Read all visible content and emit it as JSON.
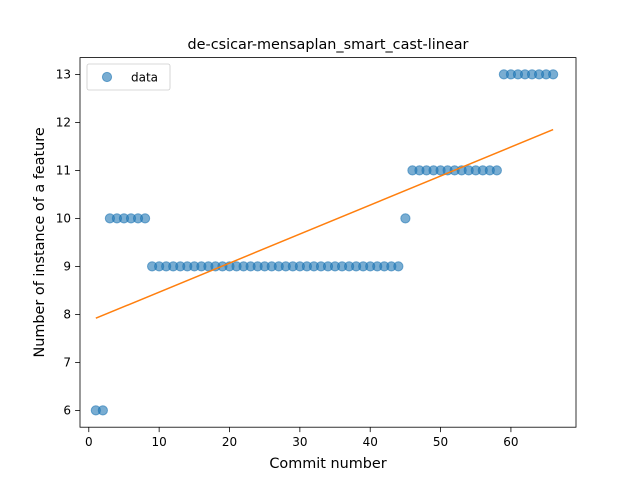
{
  "chart_data": {
    "type": "scatter",
    "title": "de-csicar-mensaplan_smart_cast-linear",
    "xlabel": "Commit number",
    "ylabel": "Number of instance of a feature",
    "xlim": [
      -1.25,
      69.25
    ],
    "ylim": [
      5.65,
      13.35
    ],
    "xticks": [
      0,
      10,
      20,
      30,
      40,
      50,
      60
    ],
    "yticks": [
      6,
      7,
      8,
      9,
      10,
      11,
      12,
      13
    ],
    "legend": {
      "position": "top-left",
      "entries": [
        "data"
      ]
    },
    "grid": false,
    "series": [
      {
        "name": "data",
        "kind": "scatter",
        "color": "#1f77b4",
        "x": [
          1,
          2,
          3,
          4,
          5,
          6,
          7,
          8,
          9,
          10,
          11,
          12,
          13,
          14,
          15,
          16,
          17,
          18,
          19,
          20,
          21,
          22,
          23,
          24,
          25,
          26,
          27,
          28,
          29,
          30,
          31,
          32,
          33,
          34,
          35,
          36,
          37,
          38,
          39,
          40,
          41,
          42,
          43,
          44,
          45,
          46,
          47,
          48,
          49,
          50,
          51,
          52,
          53,
          54,
          55,
          56,
          57,
          58,
          59,
          60,
          61,
          62,
          63,
          64,
          65,
          66
        ],
        "y": [
          6,
          6,
          10,
          10,
          10,
          10,
          10,
          10,
          9,
          9,
          9,
          9,
          9,
          9,
          9,
          9,
          9,
          9,
          9,
          9,
          9,
          9,
          9,
          9,
          9,
          9,
          9,
          9,
          9,
          9,
          9,
          9,
          9,
          9,
          9,
          9,
          9,
          9,
          9,
          9,
          9,
          9,
          9,
          9,
          10,
          11,
          11,
          11,
          11,
          11,
          11,
          11,
          11,
          11,
          11,
          11,
          11,
          11,
          13,
          13,
          13,
          13,
          13,
          13,
          13,
          13
        ]
      },
      {
        "kind": "line",
        "color": "#ff7f0e",
        "x": [
          1,
          66
        ],
        "y": [
          7.92,
          11.85
        ]
      }
    ]
  }
}
